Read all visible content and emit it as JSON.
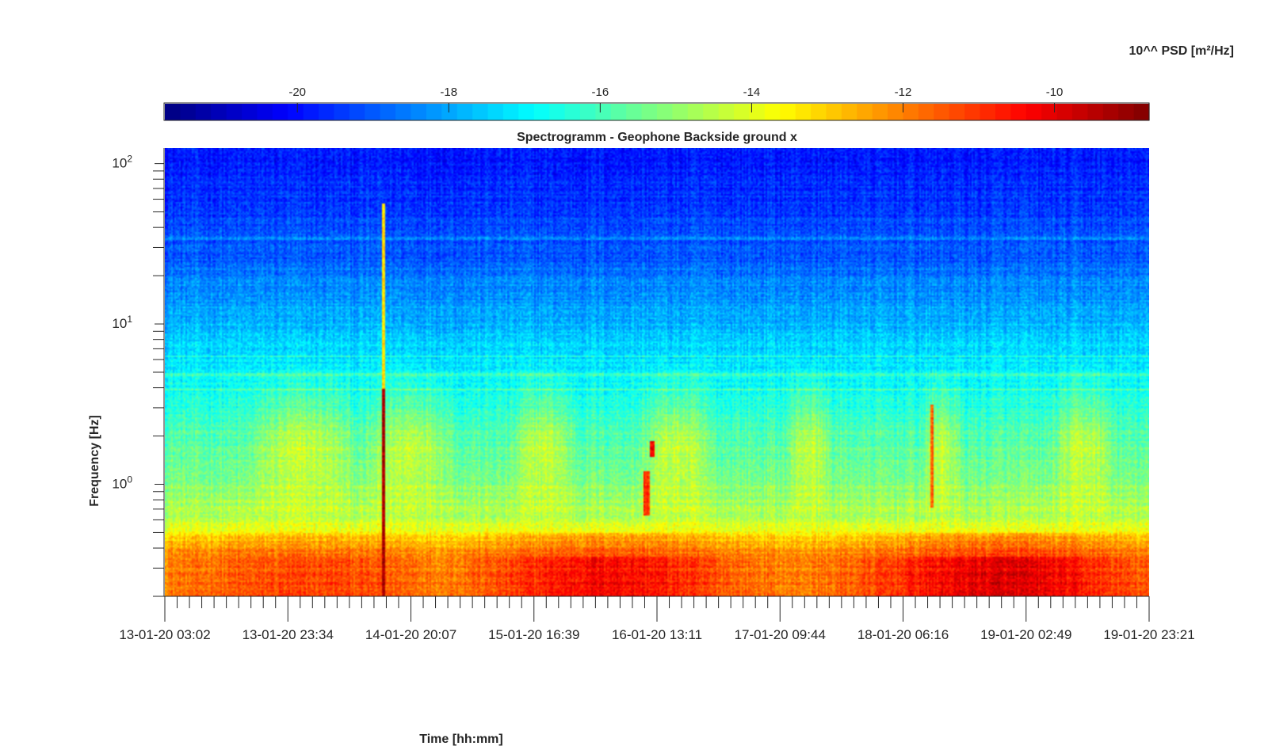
{
  "chart_data": {
    "type": "heatmap",
    "title": "Spectrogramm - Geophone Backside ground x",
    "xlabel": "Time [hh:mm]",
    "ylabel": "Frequency [Hz]",
    "yscale": "log",
    "ylim": [
      0.2,
      125
    ],
    "y_ticks": [
      {
        "base": "10",
        "exp": "0",
        "value": 1
      },
      {
        "base": "10",
        "exp": "1",
        "value": 10
      },
      {
        "base": "10",
        "exp": "2",
        "value": 100
      }
    ],
    "x_ticks": [
      "13-01-20 03:02",
      "13-01-20 23:34",
      "14-01-20 20:07",
      "15-01-20 16:39",
      "16-01-20 13:11",
      "17-01-20 09:44",
      "18-01-20 06:16",
      "19-01-20 02:49",
      "19-01-20 23:21"
    ],
    "colorbar": {
      "label": "10^^ PSD [m²/Hz]",
      "min": -21.75,
      "max": -8.75,
      "ticks": [
        -20,
        -18,
        -16,
        -14,
        -12,
        -10
      ],
      "colormap": "jet"
    },
    "events": [
      {
        "time": "14-01-20 12:30",
        "freq_range": [
          0.2,
          60
        ],
        "log_psd": -9.2
      },
      {
        "time": "16-01-20 10:30",
        "freq_range": [
          1.5,
          1.9
        ],
        "log_psd": -10.2
      },
      {
        "time": "16-01-20 10:00",
        "freq_range": [
          0.6,
          1.2
        ],
        "log_psd": -10.8
      },
      {
        "time": "18-01-20 14:00",
        "freq_range": [
          0.8,
          3.2
        ],
        "log_psd": -11.5
      }
    ],
    "grid": false
  }
}
